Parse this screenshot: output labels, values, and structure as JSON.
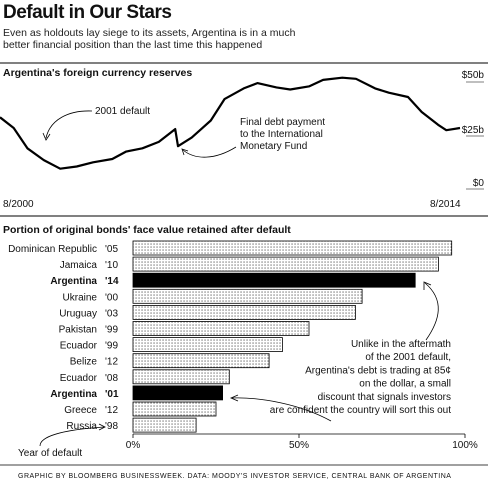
{
  "header": {
    "title": "Default in Our Stars",
    "subtitle": "Even as holdouts lay siege to its assets, Argentina is in a much better financial position than the last time this happened"
  },
  "footer": {
    "credit": "GRAPHIC BY BLOOMBERG BUSINESSWEEK. DATA: MOODY'S INVESTOR SERVICE, CENTRAL BANK OF ARGENTINA"
  },
  "chart_data": [
    {
      "type": "line",
      "title": "Argentina's foreign currency reserves",
      "x_start_label": "8/2000",
      "x_end_label": "8/2014",
      "y_ticks": [
        "$50b",
        "$25b",
        "$0"
      ],
      "ylim": [
        0,
        50
      ],
      "grid": false,
      "annotations": [
        {
          "text": "2001 default",
          "at": "2001-12"
        },
        {
          "text": "Final debt payment to the International Monetary Fund",
          "at": "2006-01"
        }
      ],
      "series": [
        {
          "x": [
            "2000-08",
            "2001-01",
            "2001-06",
            "2001-12",
            "2002-06",
            "2002-12",
            "2003-06",
            "2004-01",
            "2004-06",
            "2004-12",
            "2005-06",
            "2005-12",
            "2006-01",
            "2006-06",
            "2007-01",
            "2007-06",
            "2008-01",
            "2008-06",
            "2009-01",
            "2009-06",
            "2010-01",
            "2010-06",
            "2011-01",
            "2011-06",
            "2012-01",
            "2012-06",
            "2013-01",
            "2013-06",
            "2013-12",
            "2014-03",
            "2014-08"
          ],
          "values": [
            33.5,
            28.5,
            19,
            13.5,
            9.5,
            10.5,
            12.5,
            14,
            17.5,
            19,
            22,
            28,
            20,
            24,
            32,
            42,
            47,
            49.5,
            47.5,
            46.5,
            48,
            51,
            52,
            51.5,
            47,
            45,
            43,
            36,
            30,
            27.5,
            28.5
          ]
        }
      ]
    },
    {
      "type": "bar",
      "orientation": "horizontal",
      "title": "Portion of original bonds' face value retained after default",
      "categories": [
        "Dominican Republic",
        "Jamaica",
        "Argentina",
        "Ukraine",
        "Uruguay",
        "Pakistan",
        "Ecuador",
        "Belize",
        "Ecuador",
        "Argentina",
        "Greece",
        "Russia"
      ],
      "years": [
        "'05",
        "'10",
        "'14",
        "'00",
        "'03",
        "'99",
        "'99",
        "'12",
        "'08",
        "'01",
        "'12",
        "'98"
      ],
      "highlighted": [
        false,
        false,
        true,
        false,
        false,
        false,
        false,
        false,
        false,
        true,
        false,
        false
      ],
      "values": [
        96,
        92,
        85,
        69,
        67,
        53,
        45,
        41,
        29,
        27,
        25,
        19
      ],
      "xlim": [
        0,
        100
      ],
      "x_ticks": [
        "0%",
        "50%",
        "100%"
      ],
      "axis_note": "Year of default",
      "annotation": "Unlike in the aftermath of the 2001 default, Argentina's debt is trading at 85¢ on the dollar, a small discount that signals investors are confident the country will sort this out",
      "colors": {
        "highlight": "#000000",
        "normal_pattern": "dotted"
      }
    }
  ]
}
